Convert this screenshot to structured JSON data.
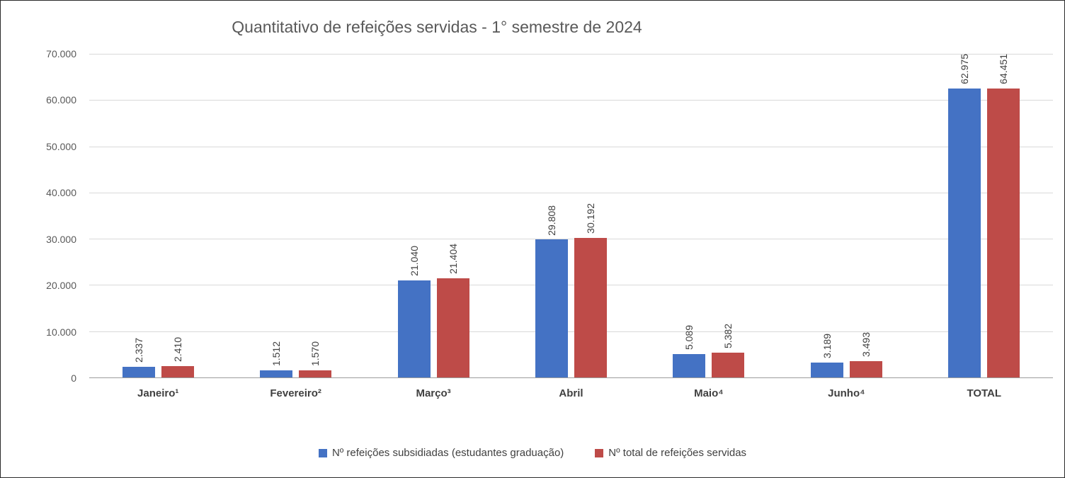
{
  "title": "Quantitativo de refeições servidas - 1° semestre de 2024",
  "colors": {
    "series1": "#4472C4",
    "series2": "#BE4B48",
    "gridline": "#D9D9D9",
    "axis_text": "#595959",
    "label_text": "#404040"
  },
  "chart_data": {
    "type": "bar",
    "title": "Quantitativo de refeições servidas - 1° semestre de 2024",
    "categories": [
      "Janeiro¹",
      "Fevereiro²",
      "Março³",
      "Abril",
      "Maio⁴",
      "Junho⁴",
      "TOTAL"
    ],
    "series": [
      {
        "name": "Nº refeições subsidiadas (estudantes graduação)",
        "color": "#4472C4",
        "values": [
          2337,
          1512,
          21040,
          29808,
          5089,
          3189,
          62975
        ],
        "labels": [
          "2.337",
          "1.512",
          "21.040",
          "29.808",
          "5.089",
          "3.189",
          "62.975"
        ]
      },
      {
        "name": "Nº total de refeições servidas",
        "color": "#BE4B48",
        "values": [
          2410,
          1570,
          21404,
          30192,
          5382,
          3493,
          64451
        ],
        "labels": [
          "2.410",
          "1.570",
          "21.404",
          "30.192",
          "5.382",
          "3.493",
          "64.451"
        ]
      }
    ],
    "y_ticks": [
      "70.000",
      "60.000",
      "50.000",
      "40.000",
      "30.000",
      "20.000",
      "10.000",
      "0"
    ],
    "ylim": [
      0,
      70000
    ],
    "xlabel": "",
    "ylabel": "",
    "grid": true,
    "legend_position": "bottom"
  }
}
